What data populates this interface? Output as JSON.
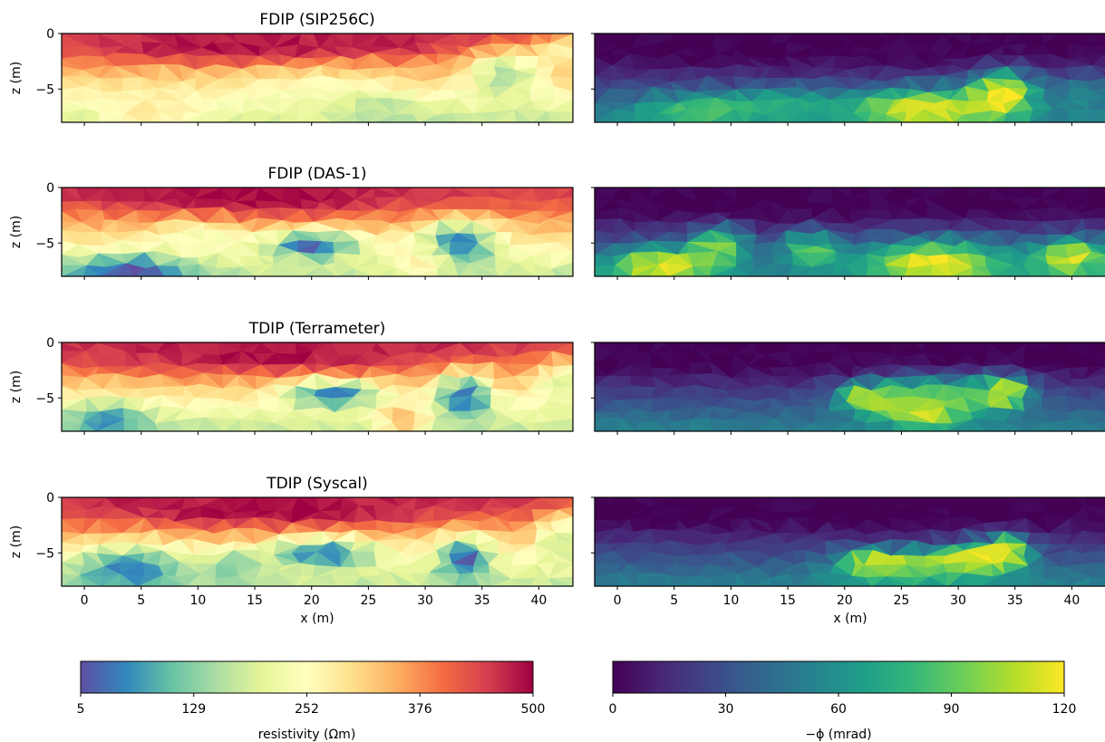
{
  "chart_data": [
    {
      "type": "heatmap",
      "title": "FDIP (SIP256C)",
      "ylabel": "z (m)",
      "xlabel": "",
      "xlim": [
        -2,
        43
      ],
      "ylim": [
        -8,
        0
      ],
      "xticks": [
        0,
        5,
        10,
        15,
        20,
        25,
        30,
        35,
        40
      ],
      "yticks": [
        0,
        -5
      ],
      "colormap": "Spectral_r",
      "clim": [
        5,
        500
      ],
      "features": [
        {
          "x": 12,
          "z": -1.2,
          "rx": 14,
          "rz": 1.6,
          "value": 490
        },
        {
          "x": 26,
          "z": -0.8,
          "rx": 10,
          "rz": 1.3,
          "value": 470
        },
        {
          "x": 37,
          "z": -3.8,
          "rx": 4,
          "rz": 3,
          "value": 150
        },
        {
          "x": 25,
          "z": -7,
          "rx": 5,
          "rz": 2,
          "value": 150
        },
        {
          "x": 6,
          "z": -7,
          "rx": 6,
          "rz": 2.5,
          "value": 290
        },
        {
          "x": 20,
          "z": -5.5,
          "rx": 8,
          "rz": 2.5,
          "value": 240
        },
        {
          "x": 42,
          "z": -1.5,
          "rx": 3,
          "rz": 2,
          "value": 280
        }
      ]
    },
    {
      "type": "heatmap",
      "title": "",
      "xlim": [
        -2,
        43
      ],
      "ylim": [
        -8,
        0
      ],
      "xticks": [
        0,
        5,
        10,
        15,
        20,
        25,
        30,
        35,
        40
      ],
      "yticks": [
        0,
        -5
      ],
      "colormap": "viridis",
      "clim": [
        0,
        120
      ],
      "features": [
        {
          "x": 27,
          "z": -6.8,
          "rx": 8,
          "rz": 2.2,
          "value": 120
        },
        {
          "x": 34,
          "z": -5.3,
          "rx": 3.5,
          "rz": 2.5,
          "value": 118
        },
        {
          "x": 7,
          "z": -7,
          "rx": 7,
          "rz": 2,
          "value": 85
        },
        {
          "x": 15,
          "z": -6.5,
          "rx": 6,
          "rz": 2,
          "value": 70
        },
        {
          "x": 41,
          "z": -6,
          "rx": 3,
          "rz": 3,
          "value": 55
        }
      ]
    },
    {
      "type": "heatmap",
      "title": "FDIP (DAS-1)",
      "ylabel": "z (m)",
      "xlabel": "",
      "xlim": [
        -2,
        43
      ],
      "ylim": [
        -8,
        0
      ],
      "xticks": [
        0,
        5,
        10,
        15,
        20,
        25,
        30,
        35,
        40
      ],
      "yticks": [
        0,
        -5
      ],
      "colormap": "Spectral_r",
      "clim": [
        5,
        500
      ],
      "features": [
        {
          "x": 15,
          "z": -1.0,
          "rx": 16,
          "rz": 1.8,
          "value": 495
        },
        {
          "x": 38,
          "z": -0.6,
          "rx": 5,
          "rz": 1.2,
          "value": 430
        },
        {
          "x": 20,
          "z": -5.2,
          "rx": 5,
          "rz": 1.6,
          "value": 20
        },
        {
          "x": 33,
          "z": -5,
          "rx": 4,
          "rz": 2.5,
          "value": 40
        },
        {
          "x": 4,
          "z": -7.5,
          "rx": 7,
          "rz": 1.8,
          "value": 15
        },
        {
          "x": 30,
          "z": -6.5,
          "rx": 3,
          "rz": 2,
          "value": 300
        },
        {
          "x": 10,
          "z": -4.5,
          "rx": 5,
          "rz": 2,
          "value": 240
        }
      ]
    },
    {
      "type": "heatmap",
      "title": "",
      "xlim": [
        -2,
        43
      ],
      "ylim": [
        -8,
        0
      ],
      "xticks": [
        0,
        5,
        10,
        15,
        20,
        25,
        30,
        35,
        40
      ],
      "yticks": [
        0,
        -5
      ],
      "colormap": "viridis",
      "clim": [
        0,
        120
      ],
      "features": [
        {
          "x": 4,
          "z": -7,
          "rx": 6,
          "rz": 2,
          "value": 118
        },
        {
          "x": 28,
          "z": -6.8,
          "rx": 8,
          "rz": 2.5,
          "value": 120
        },
        {
          "x": 40,
          "z": -6.3,
          "rx": 4,
          "rz": 2.2,
          "value": 115
        },
        {
          "x": 17,
          "z": -5.6,
          "rx": 3,
          "rz": 2,
          "value": 90
        },
        {
          "x": 9,
          "z": -5.2,
          "rx": 3,
          "rz": 2,
          "value": 95
        }
      ]
    },
    {
      "type": "heatmap",
      "title": "TDIP (Terrameter)",
      "ylabel": "z (m)",
      "xlabel": "",
      "xlim": [
        -2,
        43
      ],
      "ylim": [
        -8,
        0
      ],
      "xticks": [
        0,
        5,
        10,
        15,
        20,
        25,
        30,
        35,
        40
      ],
      "yticks": [
        0,
        -5
      ],
      "colormap": "Spectral_r",
      "clim": [
        5,
        500
      ],
      "features": [
        {
          "x": 16,
          "z": -1.2,
          "rx": 18,
          "rz": 1.9,
          "value": 490
        },
        {
          "x": 22,
          "z": -4.6,
          "rx": 5,
          "rz": 1.5,
          "value": 30
        },
        {
          "x": 33.5,
          "z": -4.8,
          "rx": 3,
          "rz": 2.5,
          "value": 20
        },
        {
          "x": 2,
          "z": -7,
          "rx": 5,
          "rz": 2,
          "value": 60
        },
        {
          "x": 42,
          "z": -4,
          "rx": 3,
          "rz": 3,
          "value": 200
        },
        {
          "x": 28,
          "z": -7,
          "rx": 3,
          "rz": 2,
          "value": 340
        }
      ]
    },
    {
      "type": "heatmap",
      "title": "",
      "xlim": [
        -2,
        43
      ],
      "ylim": [
        -8,
        0
      ],
      "xticks": [
        0,
        5,
        10,
        15,
        20,
        25,
        30,
        35,
        40
      ],
      "yticks": [
        0,
        -5
      ],
      "colormap": "viridis",
      "clim": [
        0,
        120
      ],
      "features": [
        {
          "x": 27,
          "z": -6,
          "rx": 5,
          "rz": 2,
          "value": 120
        },
        {
          "x": 34,
          "z": -4.5,
          "rx": 2.5,
          "rz": 1.8,
          "value": 118
        },
        {
          "x": 28,
          "z": -4.5,
          "rx": 8,
          "rz": 2,
          "value": 75
        },
        {
          "x": 22,
          "z": -5,
          "rx": 3,
          "rz": 1.5,
          "value": 110
        }
      ]
    },
    {
      "type": "heatmap",
      "title": "TDIP (Syscal)",
      "ylabel": "z (m)",
      "xlabel": "x (m)",
      "xlim": [
        -2,
        43
      ],
      "ylim": [
        -8,
        0
      ],
      "xticks": [
        0,
        5,
        10,
        15,
        20,
        25,
        30,
        35,
        40
      ],
      "yticks": [
        0,
        -5
      ],
      "colormap": "Spectral_r",
      "clim": [
        5,
        500
      ],
      "features": [
        {
          "x": 16,
          "z": -1.2,
          "rx": 18,
          "rz": 1.8,
          "value": 495
        },
        {
          "x": 4,
          "z": -6.5,
          "rx": 6,
          "rz": 2.5,
          "value": 40
        },
        {
          "x": 21,
          "z": -5,
          "rx": 6,
          "rz": 1.6,
          "value": 40
        },
        {
          "x": 33.5,
          "z": -5.5,
          "rx": 3,
          "rz": 2.5,
          "value": 25
        },
        {
          "x": 13,
          "z": -6.5,
          "rx": 3,
          "rz": 2,
          "value": 130
        },
        {
          "x": 42,
          "z": -4,
          "rx": 3,
          "rz": 3,
          "value": 180
        }
      ]
    },
    {
      "type": "heatmap",
      "title": "",
      "xlabel": "x (m)",
      "xlim": [
        -2,
        43
      ],
      "ylim": [
        -8,
        0
      ],
      "xticks": [
        0,
        5,
        10,
        15,
        20,
        25,
        30,
        35,
        40
      ],
      "yticks": [
        0,
        -5
      ],
      "colormap": "viridis",
      "clim": [
        0,
        120
      ],
      "features": [
        {
          "x": 31,
          "z": -5.5,
          "rx": 5,
          "rz": 1.5,
          "value": 120
        },
        {
          "x": 23,
          "z": -5.8,
          "rx": 4,
          "rz": 1.5,
          "value": 118
        },
        {
          "x": 34,
          "z": -4.6,
          "rx": 2.5,
          "rz": 1.6,
          "value": 115
        },
        {
          "x": 27,
          "z": -6.8,
          "rx": 9,
          "rz": 1.5,
          "value": 80
        }
      ]
    }
  ],
  "colorbars": [
    {
      "label": "resistivity (Ωm)",
      "ticks": [
        "5",
        "129",
        "252",
        "376",
        "500"
      ],
      "range": [
        5,
        500
      ],
      "colormap": "Spectral_r",
      "stops": [
        "#5e4fa2",
        "#3288bd",
        "#66c2a5",
        "#abdda4",
        "#e6f598",
        "#ffffbf",
        "#fee08b",
        "#fdae61",
        "#f46d43",
        "#d53e4f",
        "#9e0142"
      ]
    },
    {
      "label": "−ϕ (mrad)",
      "ticks": [
        "0",
        "30",
        "60",
        "90",
        "120"
      ],
      "range": [
        0,
        120
      ],
      "colormap": "viridis",
      "stops": [
        "#440154",
        "#482878",
        "#3e4989",
        "#31688e",
        "#26828e",
        "#1f9e89",
        "#35b779",
        "#6ece58",
        "#b5de2b",
        "#fde725"
      ]
    }
  ]
}
